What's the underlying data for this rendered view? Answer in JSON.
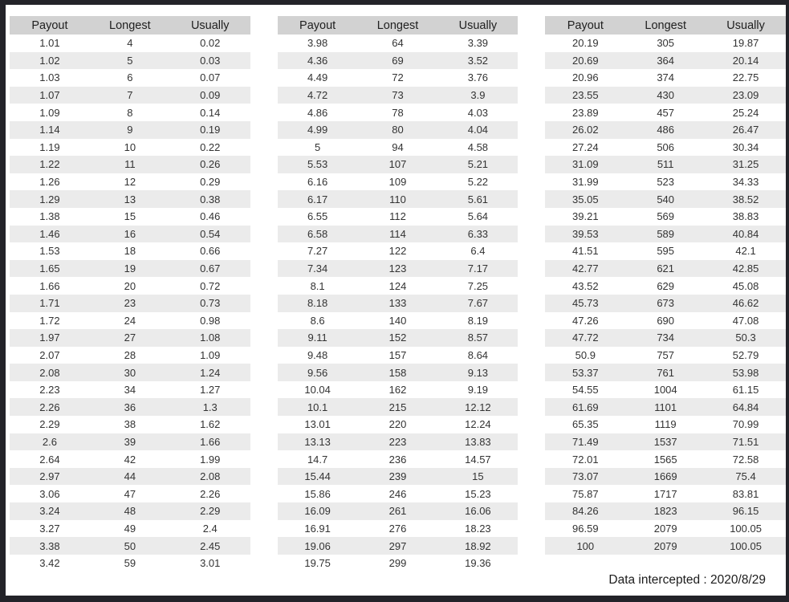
{
  "chart_data": {
    "type": "table",
    "title": "",
    "columns": [
      "Payout",
      "Longest",
      "Usually"
    ],
    "caption": "Data intercepted : 2020/8/29",
    "tables": [
      {
        "name": "payout-table-1",
        "rows": [
          [
            "1.01",
            "4",
            "0.02"
          ],
          [
            "1.02",
            "5",
            "0.03"
          ],
          [
            "1.03",
            "6",
            "0.07"
          ],
          [
            "1.07",
            "7",
            "0.09"
          ],
          [
            "1.09",
            "8",
            "0.14"
          ],
          [
            "1.14",
            "9",
            "0.19"
          ],
          [
            "1.19",
            "10",
            "0.22"
          ],
          [
            "1.22",
            "11",
            "0.26"
          ],
          [
            "1.26",
            "12",
            "0.29"
          ],
          [
            "1.29",
            "13",
            "0.38"
          ],
          [
            "1.38",
            "15",
            "0.46"
          ],
          [
            "1.46",
            "16",
            "0.54"
          ],
          [
            "1.53",
            "18",
            "0.66"
          ],
          [
            "1.65",
            "19",
            "0.67"
          ],
          [
            "1.66",
            "20",
            "0.72"
          ],
          [
            "1.71",
            "23",
            "0.73"
          ],
          [
            "1.72",
            "24",
            "0.98"
          ],
          [
            "1.97",
            "27",
            "1.08"
          ],
          [
            "2.07",
            "28",
            "1.09"
          ],
          [
            "2.08",
            "30",
            "1.24"
          ],
          [
            "2.23",
            "34",
            "1.27"
          ],
          [
            "2.26",
            "36",
            "1.3"
          ],
          [
            "2.29",
            "38",
            "1.62"
          ],
          [
            "2.6",
            "39",
            "1.66"
          ],
          [
            "2.64",
            "42",
            "1.99"
          ],
          [
            "2.97",
            "44",
            "2.08"
          ],
          [
            "3.06",
            "47",
            "2.26"
          ],
          [
            "3.24",
            "48",
            "2.29"
          ],
          [
            "3.27",
            "49",
            "2.4"
          ],
          [
            "3.38",
            "50",
            "2.45"
          ],
          [
            "3.42",
            "59",
            "3.01"
          ]
        ]
      },
      {
        "name": "payout-table-2",
        "rows": [
          [
            "3.98",
            "64",
            "3.39"
          ],
          [
            "4.36",
            "69",
            "3.52"
          ],
          [
            "4.49",
            "72",
            "3.76"
          ],
          [
            "4.72",
            "73",
            "3.9"
          ],
          [
            "4.86",
            "78",
            "4.03"
          ],
          [
            "4.99",
            "80",
            "4.04"
          ],
          [
            "5",
            "94",
            "4.58"
          ],
          [
            "5.53",
            "107",
            "5.21"
          ],
          [
            "6.16",
            "109",
            "5.22"
          ],
          [
            "6.17",
            "110",
            "5.61"
          ],
          [
            "6.55",
            "112",
            "5.64"
          ],
          [
            "6.58",
            "114",
            "6.33"
          ],
          [
            "7.27",
            "122",
            "6.4"
          ],
          [
            "7.34",
            "123",
            "7.17"
          ],
          [
            "8.1",
            "124",
            "7.25"
          ],
          [
            "8.18",
            "133",
            "7.67"
          ],
          [
            "8.6",
            "140",
            "8.19"
          ],
          [
            "9.11",
            "152",
            "8.57"
          ],
          [
            "9.48",
            "157",
            "8.64"
          ],
          [
            "9.56",
            "158",
            "9.13"
          ],
          [
            "10.04",
            "162",
            "9.19"
          ],
          [
            "10.1",
            "215",
            "12.12"
          ],
          [
            "13.01",
            "220",
            "12.24"
          ],
          [
            "13.13",
            "223",
            "13.83"
          ],
          [
            "14.7",
            "236",
            "14.57"
          ],
          [
            "15.44",
            "239",
            "15"
          ],
          [
            "15.86",
            "246",
            "15.23"
          ],
          [
            "16.09",
            "261",
            "16.06"
          ],
          [
            "16.91",
            "276",
            "18.23"
          ],
          [
            "19.06",
            "297",
            "18.92"
          ],
          [
            "19.75",
            "299",
            "19.36"
          ]
        ]
      },
      {
        "name": "payout-table-3",
        "rows": [
          [
            "20.19",
            "305",
            "19.87"
          ],
          [
            "20.69",
            "364",
            "20.14"
          ],
          [
            "20.96",
            "374",
            "22.75"
          ],
          [
            "23.55",
            "430",
            "23.09"
          ],
          [
            "23.89",
            "457",
            "25.24"
          ],
          [
            "26.02",
            "486",
            "26.47"
          ],
          [
            "27.24",
            "506",
            "30.34"
          ],
          [
            "31.09",
            "511",
            "31.25"
          ],
          [
            "31.99",
            "523",
            "34.33"
          ],
          [
            "35.05",
            "540",
            "38.52"
          ],
          [
            "39.21",
            "569",
            "38.83"
          ],
          [
            "39.53",
            "589",
            "40.84"
          ],
          [
            "41.51",
            "595",
            "42.1"
          ],
          [
            "42.77",
            "621",
            "42.85"
          ],
          [
            "43.52",
            "629",
            "45.08"
          ],
          [
            "45.73",
            "673",
            "46.62"
          ],
          [
            "47.26",
            "690",
            "47.08"
          ],
          [
            "47.72",
            "734",
            "50.3"
          ],
          [
            "50.9",
            "757",
            "52.79"
          ],
          [
            "53.37",
            "761",
            "53.98"
          ],
          [
            "54.55",
            "1004",
            "61.15"
          ],
          [
            "61.69",
            "1101",
            "64.84"
          ],
          [
            "65.35",
            "1119",
            "70.99"
          ],
          [
            "71.49",
            "1537",
            "71.51"
          ],
          [
            "72.01",
            "1565",
            "72.58"
          ],
          [
            "73.07",
            "1669",
            "75.4"
          ],
          [
            "75.87",
            "1717",
            "83.81"
          ],
          [
            "84.26",
            "1823",
            "96.15"
          ],
          [
            "96.59",
            "2079",
            "100.05"
          ],
          [
            "100",
            "2079",
            "100.05"
          ]
        ]
      }
    ],
    "colors": {
      "frame": "#232329",
      "header_bg": "#d2d2d2",
      "stripe": "#ebebeb",
      "text": "#333333"
    }
  }
}
